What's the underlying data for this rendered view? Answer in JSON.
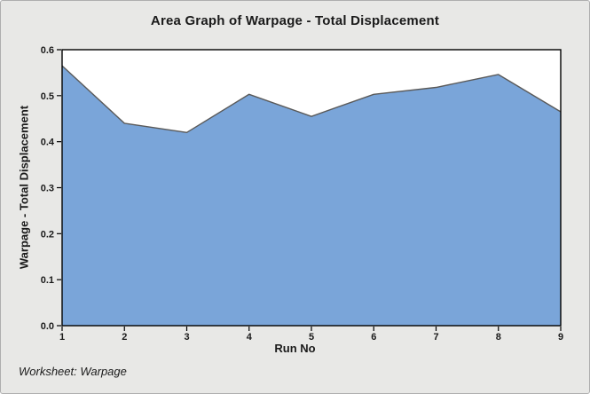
{
  "window": {
    "background_color": "#e8e8e6",
    "border_color": "#aeaeae"
  },
  "chart_data": {
    "type": "area",
    "title": "Area Graph of Warpage - Total Displacement",
    "xlabel": "Run No",
    "ylabel": "Warpage - Total Displacement",
    "categories": [
      "1",
      "2",
      "3",
      "4",
      "5",
      "6",
      "7",
      "8",
      "9"
    ],
    "x": [
      1,
      2,
      3,
      4,
      5,
      6,
      7,
      8,
      9
    ],
    "values": [
      0.565,
      0.44,
      0.42,
      0.503,
      0.455,
      0.503,
      0.518,
      0.546,
      0.465
    ],
    "xlim": [
      1,
      9
    ],
    "ylim": [
      0,
      0.6
    ],
    "ytick_labels": [
      "0.0",
      "0.1",
      "0.2",
      "0.3",
      "0.4",
      "0.5",
      "0.6"
    ],
    "yticks": [
      0,
      0.1,
      0.2,
      0.3,
      0.4,
      0.5,
      0.6
    ],
    "grid": false,
    "legend": "none",
    "plot_background": "#ffffff",
    "area_fill": "#7aa5d9",
    "area_outline": "#5a5a5a",
    "axis_color": "#000000",
    "tick_color": "#000000"
  },
  "footer": {
    "text": "Worksheet: Warpage"
  }
}
